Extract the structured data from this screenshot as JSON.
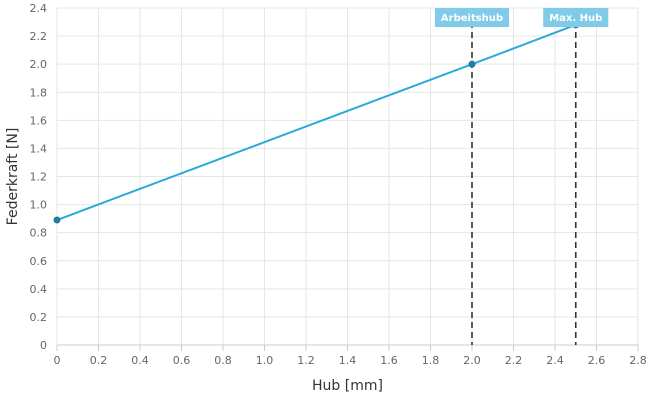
{
  "chart_data": {
    "type": "line",
    "title": "",
    "xlabel": "Hub [mm]",
    "ylabel": "Federkraft [N]",
    "xlim": [
      0,
      2.8
    ],
    "ylim": [
      0,
      2.4
    ],
    "x_ticks": [
      "0",
      "0.2",
      "0.4",
      "0.6",
      "0.8",
      "1.0",
      "1.2",
      "1.4",
      "1.6",
      "1.8",
      "2.0",
      "2.2",
      "2.4",
      "2.6",
      "2.8"
    ],
    "y_ticks": [
      "0",
      "0.2",
      "0.4",
      "0.6",
      "0.8",
      "1.0",
      "1.2",
      "1.4",
      "1.6",
      "1.8",
      "2.0",
      "2.2",
      "2.4"
    ],
    "grid": true,
    "legend": "none",
    "series": [
      {
        "color": "#2ea8d8",
        "points": [
          {
            "x": 0,
            "y": 0.89
          },
          {
            "x": 2.0,
            "y": 2.0
          },
          {
            "x": 2.5,
            "y": 2.28
          }
        ]
      }
    ],
    "annotations": [
      {
        "label": "Arbeitshub",
        "x": 2.0
      },
      {
        "label": "Max. Hub",
        "x": 2.5
      }
    ],
    "colors": {
      "line": "#2ea8d8",
      "marker": "#1f7fa3",
      "annotation_bg": "#7fcbe8",
      "grid": "#e6e6e6",
      "dashed": "#333333"
    }
  }
}
